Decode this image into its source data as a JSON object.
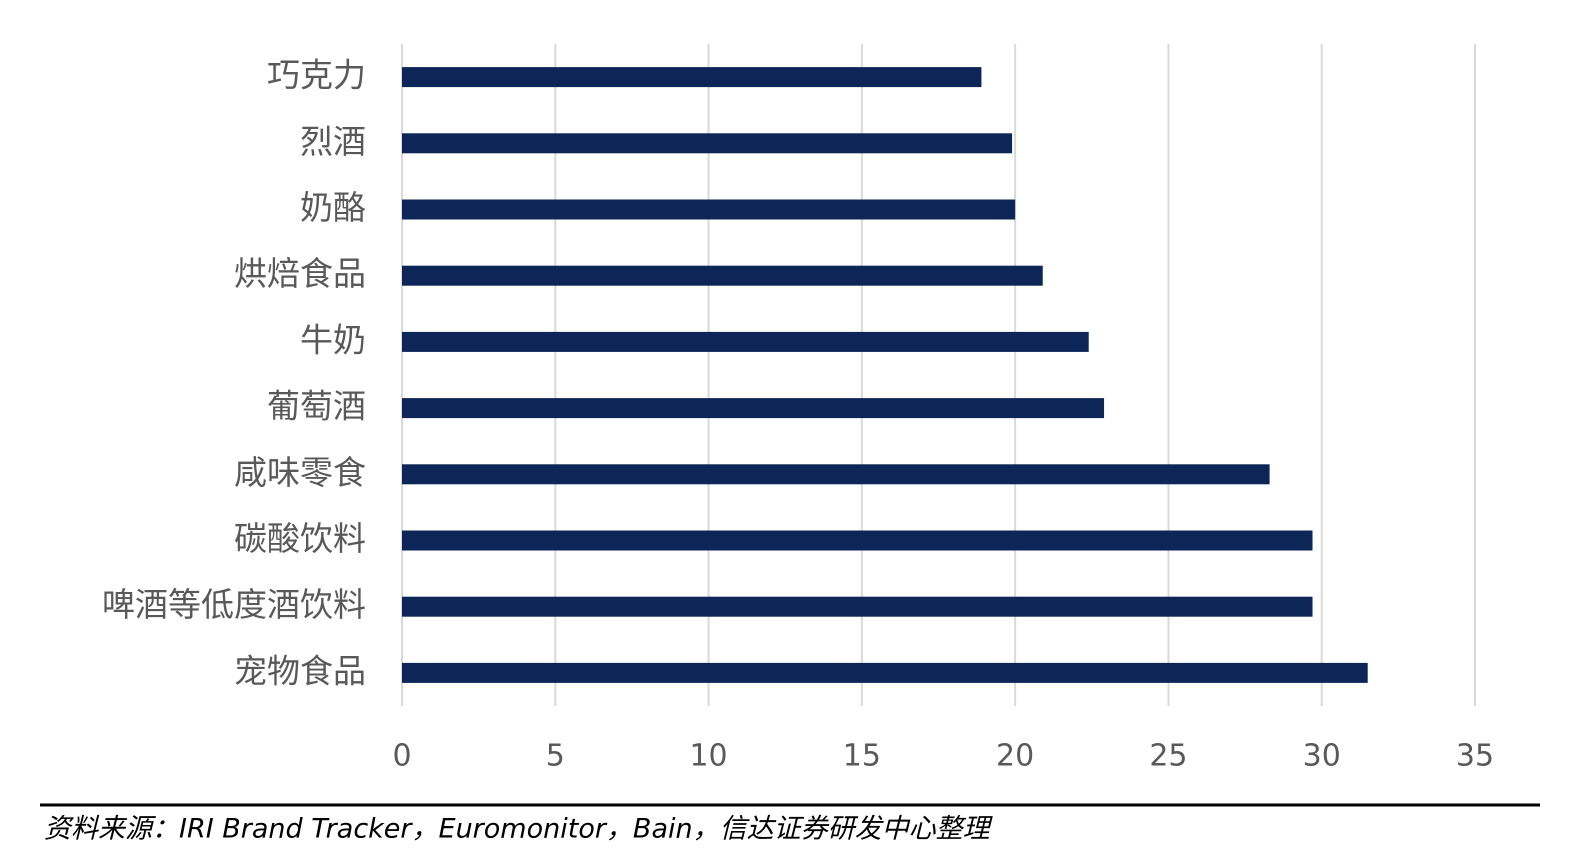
{
  "chart_data": {
    "type": "barh",
    "categories": [
      "巧克力",
      "烈酒",
      "奶酪",
      "烘焙食品",
      "牛奶",
      "葡萄酒",
      "咸味零食",
      "碳酸饮料",
      "啤酒等低度酒饮料",
      "宠物食品"
    ],
    "values": [
      18.9,
      19.9,
      20.0,
      20.9,
      22.4,
      22.9,
      28.3,
      29.7,
      29.7,
      31.5
    ],
    "color": "#0d2557",
    "xlim": [
      0,
      35
    ],
    "xticks": [
      0,
      5,
      10,
      15,
      20,
      25,
      30,
      35
    ],
    "grid": true
  },
  "source": "资料来源：IRI Brand Tracker，Euromonitor，Bain，信达证券研发中心整理"
}
